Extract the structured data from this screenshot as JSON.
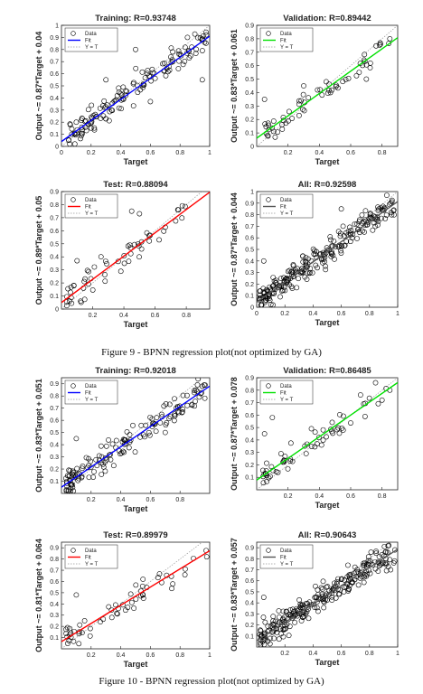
{
  "captions": [
    "Figure 9 - BPNN regression plot(not optimized by GA)",
    "Figure 10 - BPNN regression plot(not optimized by GA)"
  ],
  "legend": {
    "data": "Data",
    "fit": "Fit",
    "identity": "Y = T"
  },
  "colors": {
    "training": "#0000ff",
    "validation": "#00e000",
    "test": "#ff0000",
    "all": "#555555",
    "marker": "#000000",
    "identity": "#999999"
  },
  "chart_data": [
    {
      "type": "scatter",
      "title": "Training: R=0.93748",
      "xlabel": "Target",
      "ylabel": "Output ~= 0.87*Target + 0.04",
      "xlim": [
        0,
        1
      ],
      "ylim": [
        0,
        1
      ],
      "xticks": [
        0,
        0.2,
        0.4,
        0.6,
        0.8,
        1
      ],
      "yticks": [
        0,
        0.1,
        0.2,
        0.3,
        0.4,
        0.5,
        0.6,
        0.7,
        0.8,
        0.9,
        1
      ],
      "fit": {
        "slope": 0.87,
        "intercept": 0.04
      },
      "fit_color": "#0000ff",
      "n_points": 140,
      "spread": 0.08,
      "seed": 11,
      "x_range": [
        0.03,
        0.98
      ],
      "points": [
        [
          0.1,
          0.2
        ],
        [
          0.3,
          0.55
        ],
        [
          0.5,
          0.8
        ],
        [
          0.6,
          0.37
        ],
        [
          0.85,
          0.9
        ],
        [
          0.95,
          0.55
        ]
      ]
    },
    {
      "type": "scatter",
      "title": "Validation: R=0.89442",
      "xlabel": "Target",
      "ylabel": "Output ~= 0.83*Target + 0.061",
      "xlim": [
        0,
        0.9
      ],
      "ylim": [
        0,
        0.9
      ],
      "xticks": [
        0.2,
        0.4,
        0.6,
        0.8
      ],
      "yticks": [
        0,
        0.1,
        0.2,
        0.3,
        0.4,
        0.5,
        0.6,
        0.7,
        0.8,
        0.9
      ],
      "fit": {
        "slope": 0.83,
        "intercept": 0.061
      },
      "fit_color": "#00e000",
      "n_points": 60,
      "spread": 0.07,
      "seed": 23,
      "x_range": [
        0.05,
        0.85
      ],
      "points": [
        [
          0.85,
          0.8
        ],
        [
          0.3,
          0.45
        ],
        [
          0.05,
          0.35
        ],
        [
          0.7,
          0.5
        ]
      ]
    },
    {
      "type": "scatter",
      "title": "Test: R=0.88094",
      "xlabel": "Target",
      "ylabel": "Output ~= 0.89*Target + 0.05",
      "xlim": [
        0,
        0.95
      ],
      "ylim": [
        0,
        0.9
      ],
      "xticks": [
        0.2,
        0.4,
        0.6,
        0.8
      ],
      "yticks": [
        0,
        0.1,
        0.2,
        0.3,
        0.4,
        0.5,
        0.6,
        0.7,
        0.8,
        0.9
      ],
      "fit": {
        "slope": 0.89,
        "intercept": 0.05
      },
      "fit_color": "#ff0000",
      "n_points": 55,
      "spread": 0.08,
      "seed": 37,
      "x_range": [
        0.03,
        0.8
      ],
      "points": [
        [
          0.45,
          0.75
        ],
        [
          0.5,
          0.73
        ],
        [
          0.75,
          0.76
        ],
        [
          0.1,
          0.37
        ]
      ]
    },
    {
      "type": "scatter",
      "title": "All: R=0.92598",
      "xlabel": "Target",
      "ylabel": "Output ~= 0.87*Target + 0.044",
      "xlim": [
        0,
        1
      ],
      "ylim": [
        0,
        1
      ],
      "xticks": [
        0,
        0.2,
        0.4,
        0.6,
        0.8,
        1
      ],
      "yticks": [
        0,
        0.1,
        0.2,
        0.3,
        0.4,
        0.5,
        0.6,
        0.7,
        0.8,
        0.9,
        1
      ],
      "fit": {
        "slope": 0.87,
        "intercept": 0.044
      },
      "fit_color": "#555555",
      "n_points": 240,
      "spread": 0.08,
      "seed": 51,
      "x_range": [
        0.02,
        0.98
      ],
      "points": [
        [
          0.95,
          0.9
        ],
        [
          0.05,
          0.4
        ],
        [
          0.6,
          0.85
        ]
      ]
    },
    {
      "type": "scatter",
      "title": "Training: R=0.92018",
      "xlabel": "Target",
      "ylabel": "Output ~= 0.83*Target + 0.051",
      "xlim": [
        0,
        1
      ],
      "ylim": [
        0,
        0.95
      ],
      "xticks": [
        0.2,
        0.4,
        0.6,
        0.8
      ],
      "yticks": [
        0.1,
        0.2,
        0.3,
        0.4,
        0.5,
        0.6,
        0.7,
        0.8,
        0.9
      ],
      "fit": {
        "slope": 0.83,
        "intercept": 0.051
      },
      "fit_color": "#0000ff",
      "n_points": 150,
      "spread": 0.08,
      "seed": 67,
      "x_range": [
        0.03,
        0.98
      ],
      "points": [
        [
          0.95,
          0.88
        ],
        [
          0.1,
          0.45
        ],
        [
          0.7,
          0.5
        ]
      ]
    },
    {
      "type": "scatter",
      "title": "Validation: R=0.86485",
      "xlabel": "Target",
      "ylabel": "Output ~= 0.87*Target + 0.078",
      "xlim": [
        0,
        0.9
      ],
      "ylim": [
        0,
        0.9
      ],
      "xticks": [
        0.2,
        0.4,
        0.6,
        0.8
      ],
      "yticks": [
        0.1,
        0.2,
        0.3,
        0.4,
        0.5,
        0.6,
        0.7,
        0.8,
        0.9
      ],
      "fit": {
        "slope": 0.87,
        "intercept": 0.078
      },
      "fit_color": "#00e000",
      "n_points": 60,
      "spread": 0.09,
      "seed": 79,
      "x_range": [
        0.03,
        0.85
      ],
      "points": [
        [
          0.05,
          0.45
        ],
        [
          0.1,
          0.58
        ],
        [
          0.8,
          0.72
        ],
        [
          0.85,
          0.8
        ]
      ]
    },
    {
      "type": "scatter",
      "title": "Test: R=0.89979",
      "xlabel": "Target",
      "ylabel": "Output ~= 0.81*Target + 0.064",
      "xlim": [
        0,
        1
      ],
      "ylim": [
        0,
        0.95
      ],
      "xticks": [
        0.2,
        0.4,
        0.6,
        0.8,
        1
      ],
      "yticks": [
        0.1,
        0.2,
        0.3,
        0.4,
        0.5,
        0.6,
        0.7,
        0.8,
        0.9
      ],
      "fit": {
        "slope": 0.81,
        "intercept": 0.064
      },
      "fit_color": "#ff0000",
      "n_points": 55,
      "spread": 0.07,
      "seed": 91,
      "x_range": [
        0.03,
        0.98
      ],
      "points": [
        [
          0.98,
          0.82
        ],
        [
          0.55,
          0.62
        ],
        [
          0.1,
          0.48
        ]
      ]
    },
    {
      "type": "scatter",
      "title": "All: R=0.90643",
      "xlabel": "Target",
      "ylabel": "Output ~= 0.83*Target + 0.057",
      "xlim": [
        0,
        1
      ],
      "ylim": [
        0,
        0.95
      ],
      "xticks": [
        0.2,
        0.4,
        0.6,
        0.8,
        1
      ],
      "yticks": [
        0.1,
        0.2,
        0.3,
        0.4,
        0.5,
        0.6,
        0.7,
        0.8,
        0.9
      ],
      "fit": {
        "slope": 0.83,
        "intercept": 0.057
      },
      "fit_color": "#555555",
      "n_points": 250,
      "spread": 0.08,
      "seed": 103,
      "x_range": [
        0.02,
        0.98
      ],
      "points": [
        [
          0.98,
          0.88
        ],
        [
          0.05,
          0.45
        ],
        [
          0.95,
          0.7
        ]
      ]
    }
  ]
}
